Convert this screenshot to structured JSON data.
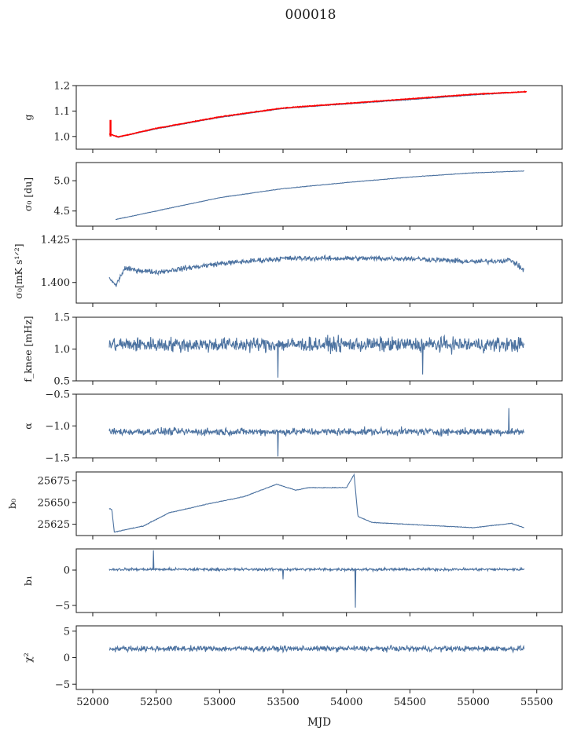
{
  "figure": {
    "suptitle": "000018",
    "xlabel": "MJD",
    "xticks": [
      52000,
      52500,
      53000,
      53500,
      54000,
      54500,
      55000,
      55500
    ],
    "xlim": [
      51870,
      55700
    ],
    "line_color": "#4c72a0",
    "overlay_color": "#ff0000"
  },
  "chart_data": [
    {
      "type": "line",
      "name": "g",
      "ylabel": "g",
      "ylim": [
        0.95,
        1.2
      ],
      "yticks": [
        1.0,
        1.1,
        1.2
      ],
      "tick_format": "1",
      "series": [
        {
          "values_x": [
            52130,
            52200,
            52500,
            53000,
            53500,
            54000,
            54500,
            55000,
            55400
          ],
          "values_y": [
            1.01,
            0.997,
            1.03,
            1.075,
            1.11,
            1.128,
            1.145,
            1.163,
            1.175
          ],
          "noise": 0.002
        },
        {
          "overlay": true,
          "values_x": [
            52130,
            52200,
            52500,
            53000,
            53500,
            54000,
            54500,
            55000,
            55420
          ],
          "values_y": [
            1.01,
            0.998,
            1.032,
            1.077,
            1.112,
            1.13,
            1.148,
            1.166,
            1.176
          ],
          "noise": 0.002,
          "spike": {
            "x": 52140,
            "y": [
              1.0,
              1.065
            ]
          }
        }
      ]
    },
    {
      "type": "line",
      "name": "sigma0-du",
      "ylabel": "σ₀ [du]",
      "ylim": [
        4.25,
        5.3
      ],
      "yticks": [
        4.5,
        5.0
      ],
      "tick_format": "1",
      "series": [
        {
          "values_x": [
            52180,
            52500,
            53000,
            53500,
            54000,
            54500,
            55000,
            55400
          ],
          "values_y": [
            4.36,
            4.5,
            4.72,
            4.87,
            4.97,
            5.06,
            5.13,
            5.16
          ],
          "noise": 0.006
        }
      ]
    },
    {
      "type": "line",
      "name": "sigma0-mks",
      "ylabel": "σ₀[mK s¹ᐟ²]",
      "ylim": [
        1.388,
        1.425
      ],
      "yticks": [
        1.4,
        1.425
      ],
      "tick_format": "3",
      "series": [
        {
          "values_x": [
            52130,
            52180,
            52250,
            52500,
            53000,
            53500,
            54000,
            54500,
            55000,
            55300,
            55400
          ],
          "values_y": [
            1.403,
            1.398,
            1.408,
            1.406,
            1.411,
            1.414,
            1.414,
            1.414,
            1.412,
            1.413,
            1.407
          ],
          "noise": 0.0022
        }
      ]
    },
    {
      "type": "line",
      "name": "fknee",
      "ylabel": "f_knee [mHz]",
      "ylim": [
        0.5,
        1.5
      ],
      "yticks": [
        0.5,
        1.0,
        1.5
      ],
      "tick_format": "1",
      "series": [
        {
          "values_x": [
            52130,
            55400
          ],
          "values_y": [
            1.07,
            1.07
          ],
          "noise": 0.17,
          "dips": [
            [
              53460,
              0.55
            ],
            [
              54600,
              0.6
            ]
          ]
        }
      ]
    },
    {
      "type": "line",
      "name": "alpha",
      "ylabel": "α",
      "ylim": [
        -1.5,
        -0.5
      ],
      "yticks": [
        -1.5,
        -1.0,
        -0.5
      ],
      "tick_format": "1",
      "series": [
        {
          "values_x": [
            52130,
            55400
          ],
          "values_y": [
            -1.09,
            -1.09
          ],
          "noise": 0.085,
          "dips": [
            [
              53460,
              -1.48
            ]
          ],
          "peaks": [
            [
              55280,
              -0.72
            ]
          ]
        }
      ]
    },
    {
      "type": "line",
      "name": "b0",
      "ylabel": "b₀",
      "ylim": [
        25612,
        25685
      ],
      "yticks": [
        25625,
        25650,
        25675
      ],
      "tick_format": "0",
      "series": [
        {
          "values_x": [
            52130,
            52150,
            52170,
            52400,
            52600,
            52900,
            53200,
            53450,
            53600,
            53700,
            54000,
            54060,
            54090,
            54200,
            55000,
            55300,
            55400
          ],
          "values_y": [
            25643,
            25642,
            25616,
            25623,
            25638,
            25648,
            25657,
            25671,
            25664,
            25667,
            25667,
            25682,
            25634,
            25627,
            25621,
            25626,
            25621
          ],
          "noise": 0.5
        }
      ]
    },
    {
      "type": "line",
      "name": "b1",
      "ylabel": "b₁",
      "ylim": [
        -6,
        3
      ],
      "yticks": [
        -5,
        0
      ],
      "tick_format": "0",
      "series": [
        {
          "values_x": [
            52130,
            55400
          ],
          "values_y": [
            0.1,
            0.1
          ],
          "noise": 0.28,
          "peaks": [
            [
              52480,
              2.8
            ]
          ],
          "dips": [
            [
              54070,
              -5.3
            ],
            [
              53500,
              -1.3
            ]
          ]
        }
      ]
    },
    {
      "type": "line",
      "name": "chi2",
      "ylabel": "χ²",
      "ylim": [
        -6,
        6
      ],
      "yticks": [
        -5,
        0,
        5
      ],
      "tick_format": "0",
      "series": [
        {
          "values_x": [
            52130,
            55400
          ],
          "values_y": [
            1.7,
            1.7
          ],
          "noise": 0.75
        }
      ]
    }
  ]
}
